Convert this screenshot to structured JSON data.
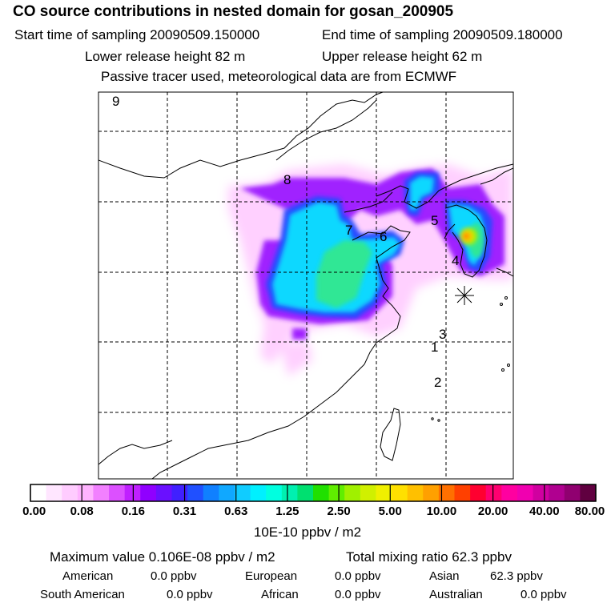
{
  "header": {
    "title": "CO  source contributions in nested domain for gosan_200905",
    "start_label": "Start time of sampling 20090509.150000",
    "end_label": "End time of sampling 20090509.180000",
    "lower_label": "Lower release height   82 m",
    "upper_label": "Upper release height   62 m",
    "tracer_note": "Passive tracer used, meteorological data are from ECMWF"
  },
  "chart_data": {
    "type": "heatmap",
    "title": "CO  source contributions in nested domain for gosan_200905",
    "colorbar": {
      "ticks": [
        "0.00",
        "0.08",
        "0.16",
        "0.31",
        "0.63",
        "1.25",
        "2.50",
        "5.00",
        "10.00",
        "20.00",
        "40.00",
        "80.00"
      ],
      "units": "10E-10 ppbv / m2",
      "colors": [
        "#ffffff",
        "#ffe6ff",
        "#ffccff",
        "#ffb3ff",
        "#f280ff",
        "#dc50ff",
        "#c020ff",
        "#9000ff",
        "#6a10ff",
        "#4020ff",
        "#2050ff",
        "#1080ff",
        "#10a8ff",
        "#10ccff",
        "#00f0ff",
        "#00ffe0",
        "#00f0b0",
        "#00e070",
        "#20e000",
        "#60ee00",
        "#a0f000",
        "#d0f000",
        "#f0f000",
        "#ffe000",
        "#ffc000",
        "#ffa000",
        "#ff7000",
        "#ff4000",
        "#ff0030",
        "#ff0070",
        "#ff00a0",
        "#f000b0",
        "#d000a0",
        "#b00090",
        "#900070",
        "#600040"
      ]
    },
    "region_labels": [
      "9",
      "8",
      "7",
      "6",
      "5",
      "4",
      "3",
      "1",
      "2"
    ],
    "receptor_marker": "asterisk",
    "grid": true,
    "grid_lines": 5
  },
  "summary": {
    "max_value": "Maximum value  0.106E-08 ppbv / m2",
    "total_mixing": "Total mixing ratio       62.3 ppbv",
    "regions": [
      {
        "name": "American",
        "value": "0.0 ppbv"
      },
      {
        "name": "European",
        "value": "0.0 ppbv"
      },
      {
        "name": "Asian",
        "value": "62.3 ppbv"
      },
      {
        "name": "South American",
        "value": "0.0 ppbv"
      },
      {
        "name": "African",
        "value": "0.0 ppbv"
      },
      {
        "name": "Australian",
        "value": "0.0 ppbv"
      }
    ]
  }
}
